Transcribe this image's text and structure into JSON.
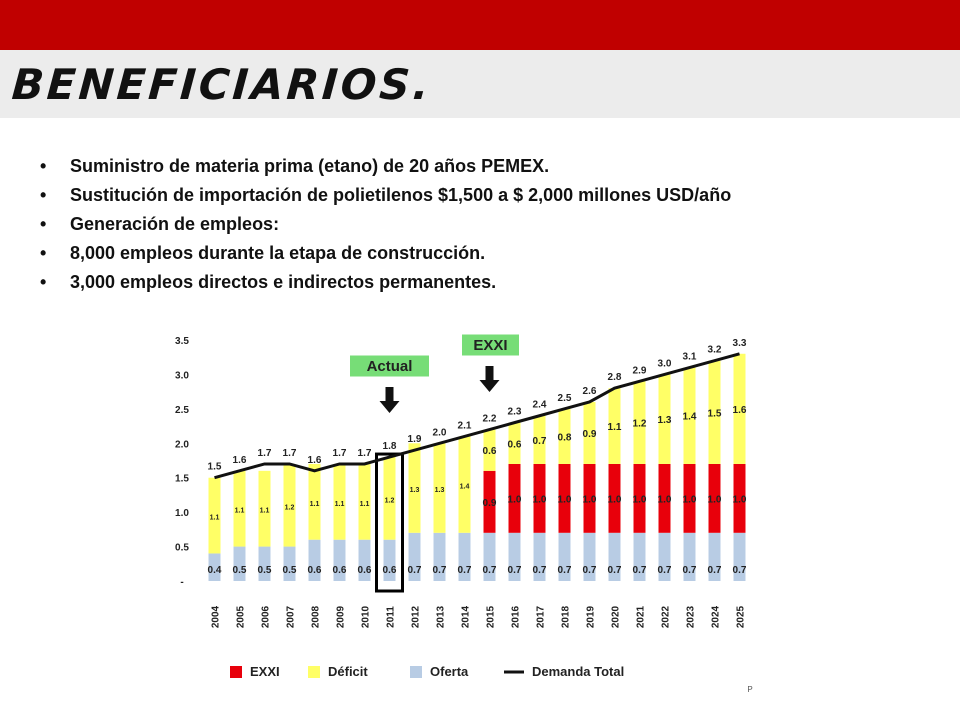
{
  "slide": {
    "title": "BENEFICIARIOS.",
    "bullet_symbol": "•",
    "bullets": [
      "Suministro de materia prima (etano) de 20 años PEMEX.",
      "Sustitución de importación de polietilenos $1,500 a $ 2,000 millones USD/año",
      "Generación de empleos:",
      "8,000 empleos durante la etapa de construcción.",
      "3,000 empleos directos e indirectos permanentes."
    ],
    "colors": {
      "top_bar": "#c00000",
      "title_band": "#ececec"
    }
  },
  "chart_data": {
    "type": "bar",
    "stacked": true,
    "categories": [
      "2004",
      "2005",
      "2006",
      "2007",
      "2008",
      "2009",
      "2010",
      "2011",
      "2012",
      "2013",
      "2014",
      "2015",
      "2016",
      "2017",
      "2018",
      "2019",
      "2020",
      "2021",
      "2022",
      "2023",
      "2024",
      "2025"
    ],
    "series": [
      {
        "name": "Oferta",
        "color": "#b8cce4",
        "values": [
          0.4,
          0.5,
          0.5,
          0.5,
          0.6,
          0.6,
          0.6,
          0.6,
          0.7,
          0.7,
          0.7,
          0.7,
          0.7,
          0.7,
          0.7,
          0.7,
          0.7,
          0.7,
          0.7,
          0.7,
          0.7,
          0.7
        ],
        "labels": [
          "0.4",
          "0.5",
          "0.5",
          "0.5",
          "0.6",
          "0.6",
          "0.6",
          "0.6",
          "0.7",
          "0.7",
          "0.7",
          "0.7",
          "0.7",
          "0.7",
          "0.7",
          "0.7",
          "0.7",
          "0.7",
          "0.7",
          "0.7",
          "0.7",
          "0.7"
        ]
      },
      {
        "name": "EXXI",
        "color": "#e8000b",
        "values": [
          0,
          0,
          0,
          0,
          0,
          0,
          0,
          0,
          0,
          0,
          0,
          0.9,
          1.0,
          1.0,
          1.0,
          1.0,
          1.0,
          1.0,
          1.0,
          1.0,
          1.0,
          1.0
        ],
        "labels": [
          "",
          "",
          "",
          "",
          "",
          "",
          "",
          "",
          "",
          "",
          "",
          "0.9",
          "1.0",
          "1.0",
          "1.0",
          "1.0",
          "1.0",
          "1.0",
          "1.0",
          "1.0",
          "1.0",
          "1.0"
        ]
      },
      {
        "name": "Déficit",
        "color": "#ffff66",
        "values": [
          1.1,
          1.1,
          1.1,
          1.2,
          1.1,
          1.1,
          1.1,
          1.2,
          1.3,
          1.3,
          1.4,
          0.6,
          0.6,
          0.7,
          0.8,
          0.9,
          1.1,
          1.2,
          1.3,
          1.4,
          1.5,
          1.6
        ],
        "labels": [
          "1.1",
          "1.1",
          "1.1",
          "1.2",
          "1.1",
          "1.1",
          "1.1",
          "1.2",
          "1.3",
          "1.3",
          "1.4",
          "0.6",
          "0.6",
          "0.7",
          "0.8",
          "0.9",
          "1.1",
          "1.2",
          "1.3",
          "1.4",
          "1.5",
          "1.6"
        ]
      }
    ],
    "line": {
      "name": "Demanda Total",
      "color": "#111111",
      "values": [
        1.5,
        1.6,
        1.7,
        1.7,
        1.6,
        1.7,
        1.7,
        1.8,
        1.9,
        2.0,
        2.1,
        2.2,
        2.3,
        2.4,
        2.5,
        2.6,
        2.8,
        2.9,
        3.0,
        3.1,
        3.2,
        3.3
      ],
      "labels": [
        "1.5",
        "1.6",
        "1.7",
        "1.7",
        "1.6",
        "1.7",
        "1.7",
        "1.8",
        "1.9",
        "2.0",
        "2.1",
        "2.2",
        "2.3",
        "2.4",
        "2.5",
        "2.6",
        "2.8",
        "2.9",
        "3.0",
        "3.1",
        "3.2",
        "3.3"
      ]
    },
    "ylim": [
      0,
      3.5
    ],
    "yticks": [
      "-",
      "0.5",
      "1.0",
      "1.5",
      "2.0",
      "2.5",
      "3.0",
      "3.5"
    ],
    "grid": false,
    "legend_position": "bottom",
    "legend": [
      {
        "label": "EXXI",
        "color": "#e8000b",
        "kind": "box"
      },
      {
        "label": "Déficit",
        "color": "#ffff66",
        "kind": "box"
      },
      {
        "label": "Oferta",
        "color": "#b8cce4",
        "kind": "box"
      },
      {
        "label": "Demanda Total",
        "color": "#111111",
        "kind": "line"
      }
    ],
    "annotations": [
      {
        "label": "Actual",
        "category": "2011",
        "color": "#77dd77"
      },
      {
        "label": "EXXI",
        "category": "2015",
        "color": "#77dd77"
      }
    ],
    "highlight_category": "2011",
    "footer_fragment": "P"
  }
}
